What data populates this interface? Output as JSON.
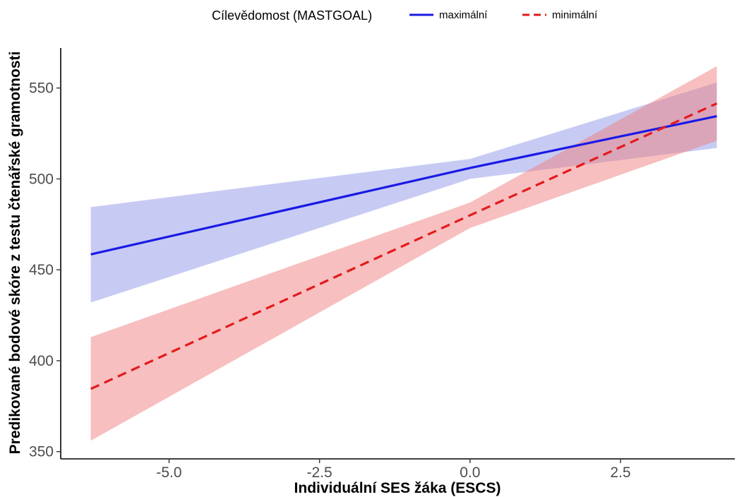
{
  "chart_data": {
    "type": "line",
    "xlabel": "Individuální SES žáka (ESCS)",
    "ylabel": "Predikované bodové skóre z testu čtenářské gramotnosti",
    "xlim": [
      -6.8,
      4.4
    ],
    "ylim": [
      346,
      572
    ],
    "x_ticks": [
      -5.0,
      -2.5,
      0.0,
      2.5
    ],
    "x_tick_labels": [
      "-5.0",
      "-2.5",
      "0.0",
      "2.5"
    ],
    "y_ticks": [
      350,
      400,
      450,
      500,
      550
    ],
    "y_tick_labels": [
      "350",
      "400",
      "450",
      "500",
      "550"
    ],
    "grid": false,
    "legend": {
      "title": "Cílevědomost (MASTGOAL)",
      "position": "top"
    },
    "series": [
      {
        "name": "maximální",
        "color": "#1a1ae6",
        "band_color": "#8f97e8",
        "dash": "solid",
        "x": [
          -6.3,
          0.0,
          4.1
        ],
        "y": [
          458.5,
          506.0,
          534.5
        ],
        "band_lower": [
          432.0,
          500.0,
          517.0
        ],
        "band_upper": [
          484.5,
          511.0,
          553.0
        ]
      },
      {
        "name": "minimální",
        "color": "#e41a1c",
        "band_color": "#f08080",
        "dash": "dashed",
        "x": [
          -6.3,
          0.0,
          4.1
        ],
        "y": [
          384.5,
          480.0,
          541.5
        ],
        "band_lower": [
          356.0,
          473.0,
          521.0
        ],
        "band_upper": [
          413.0,
          487.0,
          562.0
        ]
      }
    ]
  }
}
